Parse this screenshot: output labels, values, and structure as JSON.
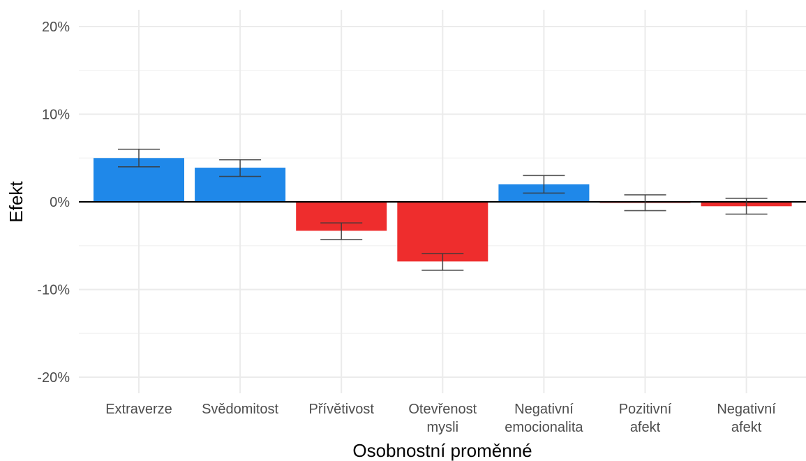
{
  "chart_data": {
    "type": "bar",
    "title": "",
    "xlabel": "Osobnostní proměnné",
    "ylabel": "Efekt",
    "y_tick_labels": [
      "-20%",
      "-10%",
      "0%",
      "10%",
      "20%"
    ],
    "y_ticks": [
      -20,
      -10,
      0,
      10,
      20
    ],
    "ylim": [
      -22,
      22
    ],
    "grid": true,
    "legend": "none",
    "categories": [
      [
        "Extraverze"
      ],
      [
        "Svědomitost"
      ],
      [
        "Přívětivost"
      ],
      [
        "Otevřenost",
        "mysli"
      ],
      [
        "Negativní",
        "emocionalita"
      ],
      [
        "Pozitivní",
        "afekt"
      ],
      [
        "Negativní",
        "afekt"
      ]
    ],
    "values": [
      5.0,
      3.9,
      -3.3,
      -6.8,
      2.0,
      -0.1,
      -0.5
    ],
    "error_low": [
      4.0,
      2.9,
      -4.3,
      -7.8,
      1.0,
      -1.0,
      -1.4
    ],
    "error_high": [
      6.0,
      4.8,
      -2.4,
      -5.9,
      3.0,
      0.8,
      0.4
    ],
    "colors": {
      "positive": "#1f88e9",
      "negative": "#ee2d2d",
      "errorbar": "#3a3a3a"
    }
  }
}
